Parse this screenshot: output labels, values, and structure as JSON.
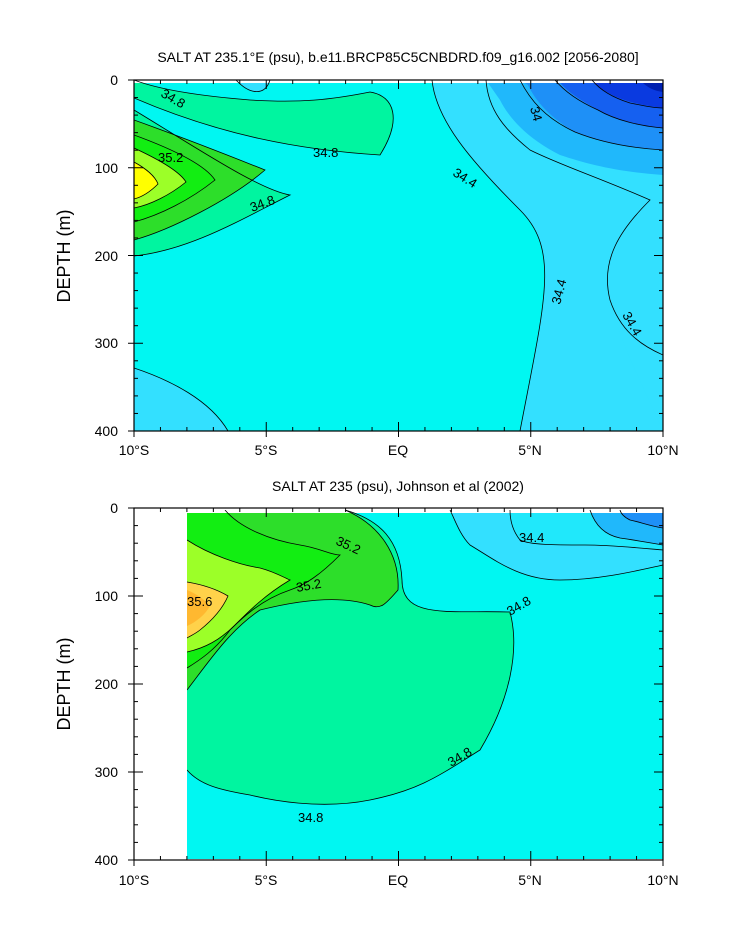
{
  "chart_data": [
    {
      "type": "contour",
      "title": "SALT AT 235.1°E (psu), b.e11.BRCP85C5CNBDRD.f09_g16.002 [2056-2080]",
      "ylabel": "DEPTH (m)",
      "xlabel": "",
      "xlim": [
        -10,
        10
      ],
      "ylim": [
        400,
        0
      ],
      "x_ticks": [
        "10°S",
        "5°S",
        "EQ",
        "5°N",
        "10°N"
      ],
      "y_ticks": [
        "0",
        "100",
        "200",
        "300",
        "400"
      ],
      "contour_labels": [
        "34.8",
        "35.2",
        "34.8",
        "34.8",
        "34.4",
        "34.4",
        "34.4",
        "34"
      ],
      "colors": {
        "c33_8": "#0a3ae0",
        "c34_0": "#1560f0",
        "c34_2": "#1e90f7",
        "c34_4": "#20b8fb",
        "c34_6": "#33e0ff",
        "c34_8": "#00f7f2",
        "c35_0": "#00f5a0",
        "c35_2": "#2dde2a",
        "c35_4": "#12ee12",
        "c35_6": "#9cff28",
        "c35_8": "#ffff00"
      }
    },
    {
      "type": "contour",
      "title": "SALT AT 235 (psu), Johnson et al (2002)",
      "ylabel": "DEPTH (m)",
      "xlabel": "",
      "xlim": [
        -10,
        10
      ],
      "ylim": [
        400,
        0
      ],
      "x_ticks": [
        "10°S",
        "5°S",
        "EQ",
        "5°N",
        "10°N"
      ],
      "y_ticks": [
        "0",
        "100",
        "200",
        "300",
        "400"
      ],
      "contour_labels": [
        "35.2",
        "35.6",
        "35.2",
        "34.8",
        "34.8",
        "34.8",
        "34.4"
      ]
    }
  ]
}
